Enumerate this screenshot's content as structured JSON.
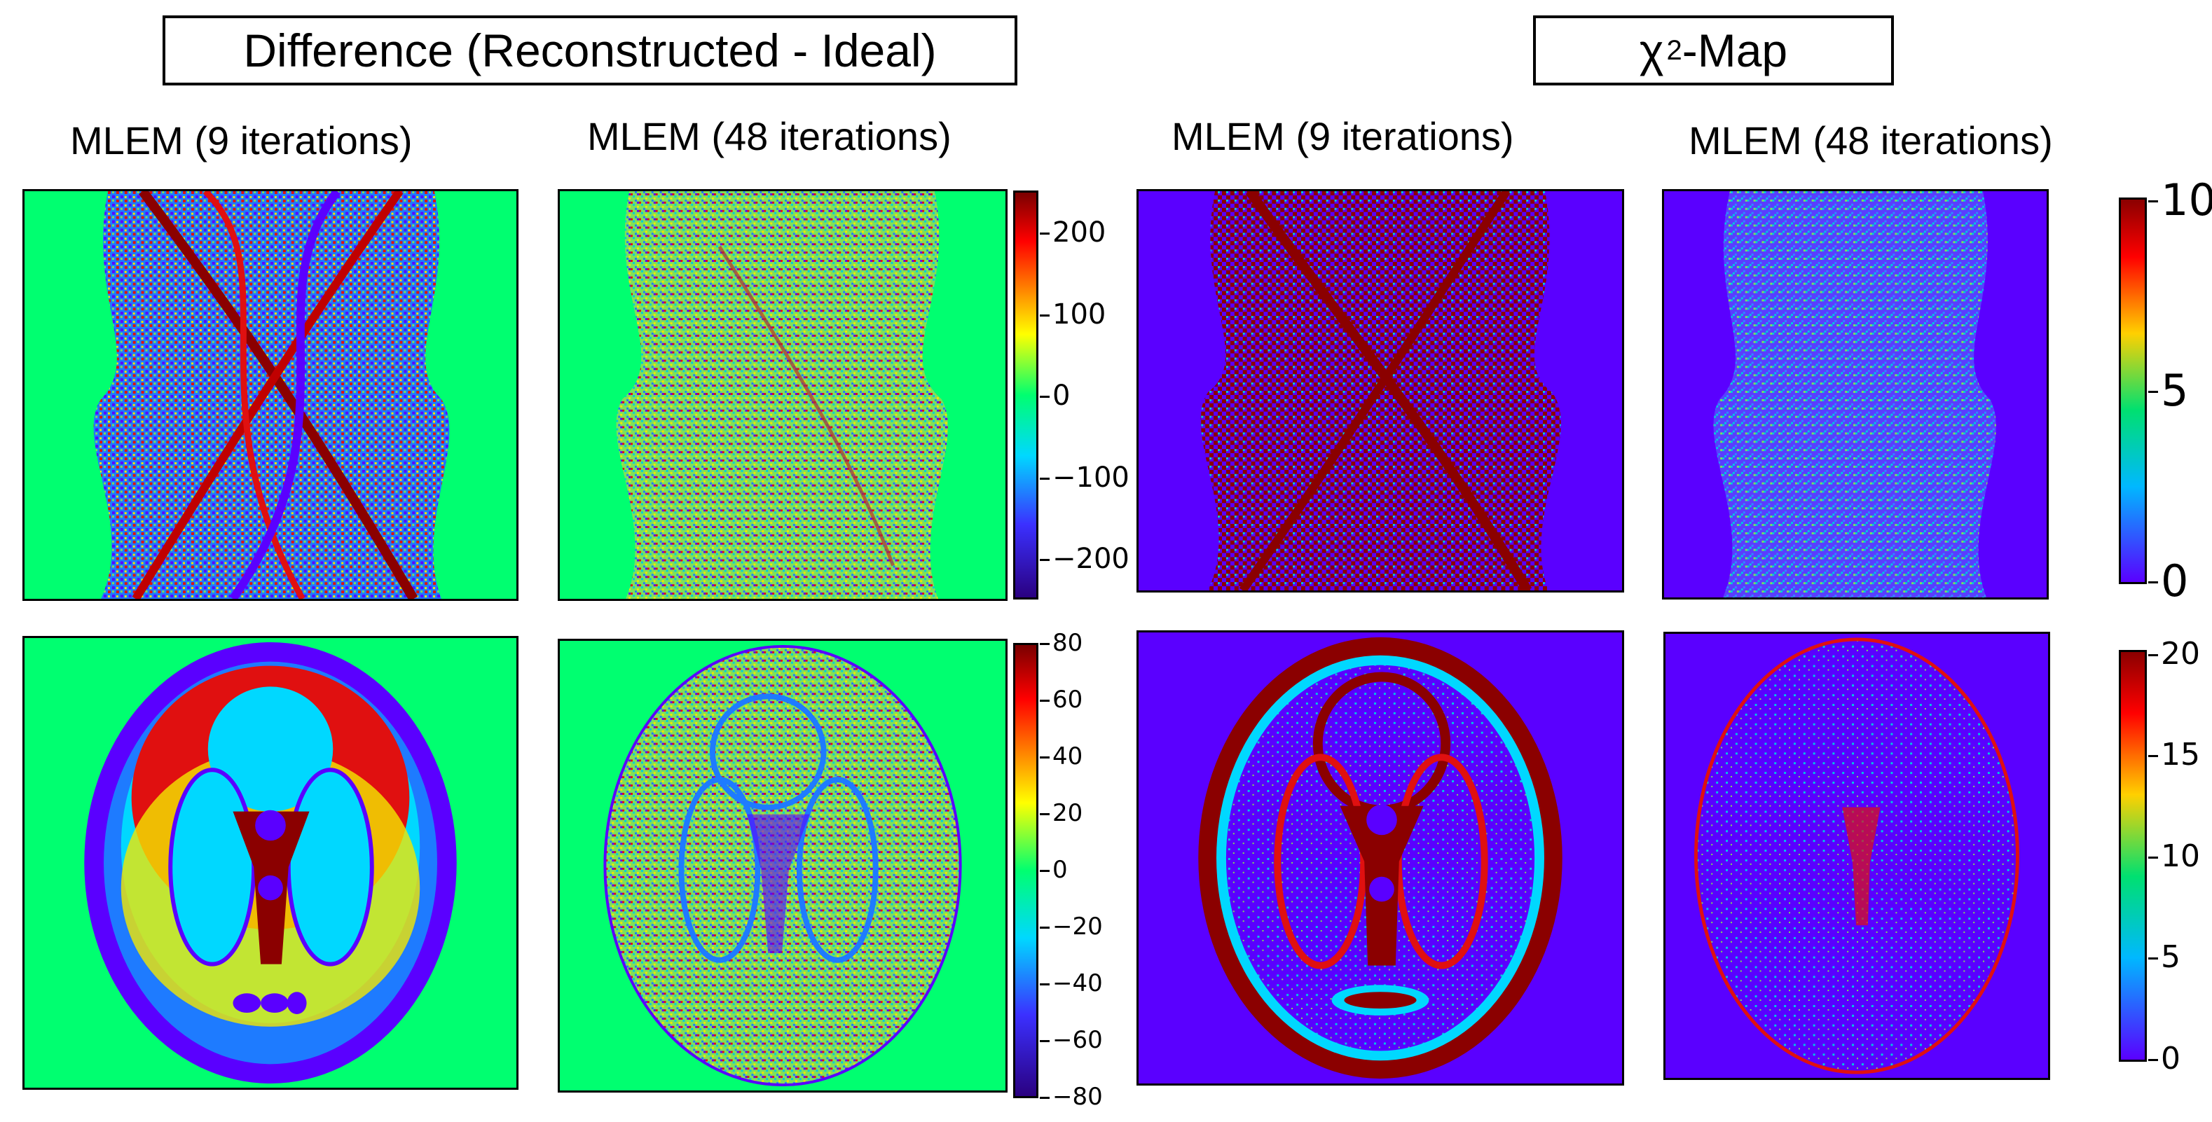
{
  "headers": {
    "difference": "Difference (Reconstructed - Ideal)",
    "chi2_symbol": "χ",
    "chi2_sup": "2",
    "chi2_rest": "-Map"
  },
  "columns": {
    "diff_9": "MLEM (9 iterations)",
    "diff_48": "MLEM (48 iterations)",
    "chi_9": "MLEM (9 iterations)",
    "chi_48": "MLEM (48 iterations)"
  },
  "colorbars": {
    "diff_top": [
      "200",
      "100",
      "0",
      "−100",
      "−200"
    ],
    "diff_bottom": [
      "80",
      "60",
      "40",
      "20",
      "0",
      "−20",
      "−40",
      "−60",
      "−80"
    ],
    "chi_top": [
      "10",
      "5",
      "0"
    ],
    "chi_bottom": [
      "20",
      "15",
      "10",
      "5",
      "0"
    ]
  },
  "colors": {
    "jet_green": "#00ff70",
    "jet_blue": "#5a00ff",
    "dark_red": "#8b0000",
    "red": "#e01010",
    "yellow": "#f2e800",
    "cyan": "#00c8e0"
  }
}
